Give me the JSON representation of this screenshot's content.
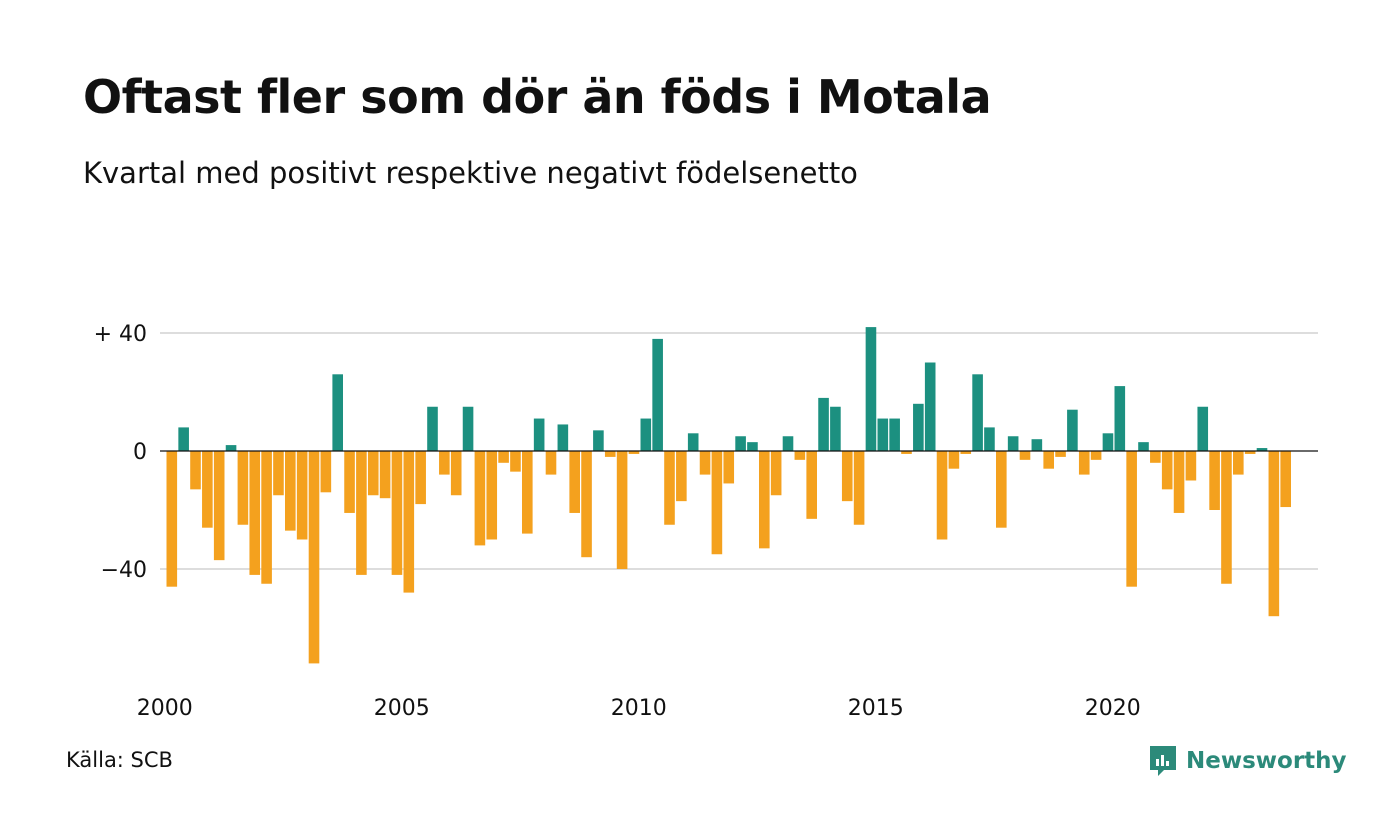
{
  "title": "Oftast fler som dör än föds i Motala",
  "subtitle": "Kvartal med positivt respektive negativt födelsenetto",
  "source": "Källa: SCB",
  "brand": {
    "name": "Newsworthy",
    "icon": "newsworthy-logo-icon",
    "color": "#2c8a7a"
  },
  "colors": {
    "positive": "#1c9080",
    "negative": "#f4a11e",
    "grid": "#dddddd",
    "zero": "#111111"
  },
  "chart_data": {
    "type": "bar",
    "ylabel": "",
    "xlabel": "",
    "ylim": [
      -77,
      44
    ],
    "yticks": [
      {
        "value": 40,
        "label": "+ 40"
      },
      {
        "value": 0,
        "label": "0"
      },
      {
        "value": -40,
        "label": "−40"
      }
    ],
    "xticks": [
      {
        "year": 2000,
        "label": "2000"
      },
      {
        "year": 2005,
        "label": "2005"
      },
      {
        "year": 2010,
        "label": "2010"
      },
      {
        "year": 2015,
        "label": "2015"
      },
      {
        "year": 2020,
        "label": "2020"
      }
    ],
    "start_year": 2000,
    "frequency": "quarterly",
    "values": [
      -46,
      8,
      -13,
      -26,
      -37,
      2,
      -25,
      -42,
      -45,
      -15,
      -27,
      -30,
      -72,
      -14,
      26,
      -21,
      -42,
      -15,
      -16,
      -42,
      -48,
      -18,
      15,
      -8,
      -15,
      15,
      -32,
      -30,
      -4,
      -7,
      -28,
      11,
      -8,
      9,
      -21,
      -36,
      7,
      -2,
      -40,
      -1,
      11,
      38,
      -25,
      -17,
      6,
      -8,
      -35,
      -11,
      5,
      3,
      -33,
      -15,
      5,
      -3,
      -23,
      18,
      15,
      -17,
      -25,
      42,
      11,
      11,
      -1,
      16,
      30,
      -30,
      -6,
      -1,
      26,
      8,
      -26,
      5,
      -3,
      4,
      -6,
      -2,
      14,
      -8,
      -3,
      6,
      22,
      -46,
      3,
      -4,
      -13,
      -21,
      -10,
      15,
      -20,
      -45,
      -8,
      -1,
      1,
      -56,
      -19
    ]
  }
}
